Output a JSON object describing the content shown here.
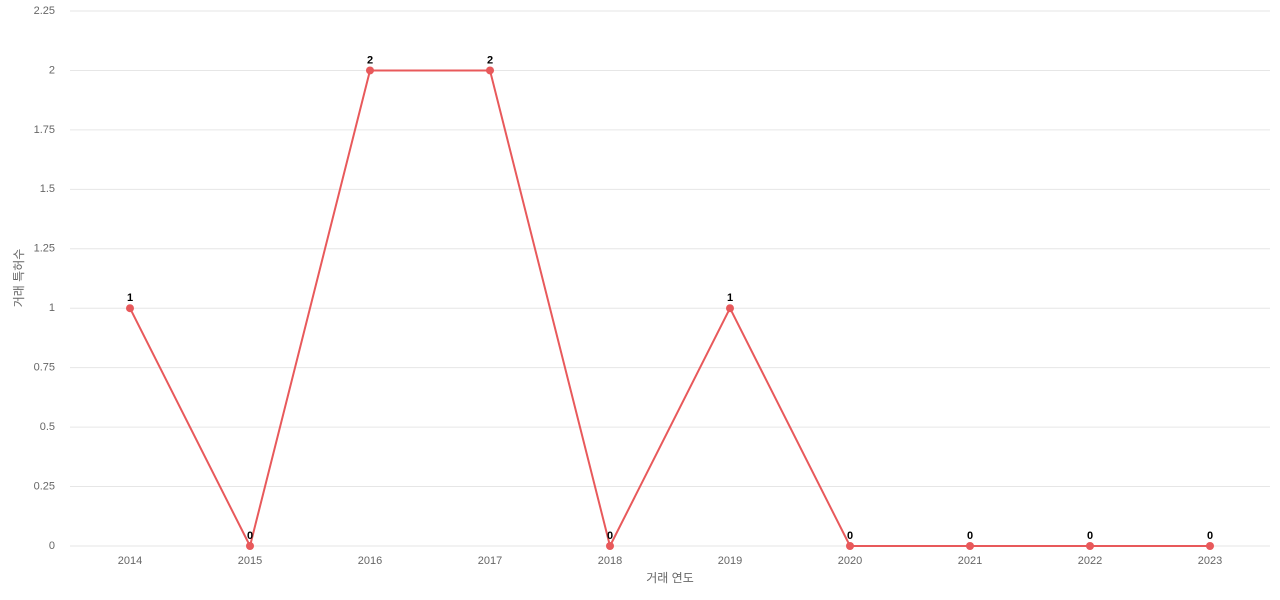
{
  "chart_data": {
    "type": "line",
    "x_label": "거래 연도",
    "y_label": "거래 특허수",
    "categories": [
      "2014",
      "2015",
      "2016",
      "2017",
      "2018",
      "2019",
      "2020",
      "2021",
      "2022",
      "2023"
    ],
    "series": [
      {
        "name": "거래 특허수",
        "color": "#e8595b",
        "values": [
          1,
          0,
          2,
          2,
          0,
          1,
          0,
          0,
          0,
          0
        ]
      }
    ],
    "ylim": [
      0,
      2.25
    ],
    "yticks": [
      0,
      0.25,
      0.5,
      0.75,
      1,
      1.25,
      1.5,
      1.75,
      2,
      2.25
    ],
    "grid": true
  }
}
